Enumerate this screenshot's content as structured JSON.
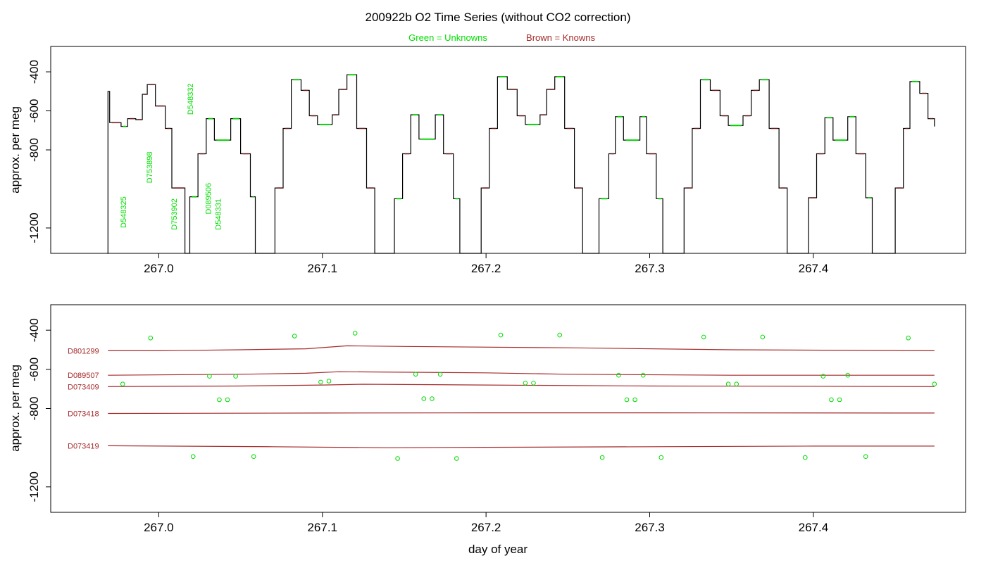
{
  "title": "200922b   O2 Time Series (without CO2 correction)",
  "legend": {
    "unknowns": "Green = Unknowns",
    "knowns": "Brown = Knowns",
    "unknowns_color": "#00dd00",
    "knowns_color": "#a52a2a"
  },
  "chart_data": [
    {
      "type": "line",
      "name": "time-series",
      "ylabel": "approx. per meg",
      "xlim": [
        266.934,
        267.493
      ],
      "ylim": [
        -1330,
        -270
      ],
      "y_reversed": true,
      "xticks": [
        "267.0",
        "267.1",
        "267.2",
        "267.3",
        "267.4"
      ],
      "xtick_values": [
        267.0,
        267.1,
        267.2,
        267.3,
        267.4
      ],
      "yticks": [
        "-400",
        "-600",
        "-800",
        "-1200"
      ],
      "ytick_values": [
        -400,
        -600,
        -800,
        -1200
      ],
      "trace_color": "#000000",
      "step_levels": [
        {
          "d": 266.9685,
          "v": -1330
        },
        {
          "d": 266.969,
          "v": -500
        },
        {
          "d": 266.97,
          "v": -660
        },
        {
          "d": 266.977,
          "v": -680
        },
        {
          "d": 266.981,
          "v": -640
        },
        {
          "d": 266.986,
          "v": -645
        },
        {
          "d": 266.99,
          "v": -515
        },
        {
          "d": 266.993,
          "v": -465
        },
        {
          "d": 266.998,
          "v": -575
        },
        {
          "d": 267.004,
          "v": -690
        },
        {
          "d": 267.008,
          "v": -995
        },
        {
          "d": 267.016,
          "v": -1330
        },
        {
          "d": 267.019,
          "v": -1040
        },
        {
          "d": 267.024,
          "v": -820
        },
        {
          "d": 267.029,
          "v": -640
        },
        {
          "d": 267.034,
          "v": -750
        },
        {
          "d": 267.044,
          "v": -640
        },
        {
          "d": 267.05,
          "v": -820
        },
        {
          "d": 267.056,
          "v": -1040
        },
        {
          "d": 267.059,
          "v": -1330
        },
        {
          "d": 267.068,
          "v": -1330
        },
        {
          "d": 267.071,
          "v": -995
        },
        {
          "d": 267.076,
          "v": -690
        },
        {
          "d": 267.081,
          "v": -440
        },
        {
          "d": 267.087,
          "v": -495
        },
        {
          "d": 267.092,
          "v": -625
        },
        {
          "d": 267.097,
          "v": -670
        },
        {
          "d": 267.106,
          "v": -620
        },
        {
          "d": 267.11,
          "v": -490
        },
        {
          "d": 267.115,
          "v": -415
        },
        {
          "d": 267.121,
          "v": -690
        },
        {
          "d": 267.127,
          "v": -995
        },
        {
          "d": 267.132,
          "v": -1330
        },
        {
          "d": 267.144,
          "v": -1050
        },
        {
          "d": 267.149,
          "v": -820
        },
        {
          "d": 267.154,
          "v": -620
        },
        {
          "d": 267.159,
          "v": -745
        },
        {
          "d": 267.169,
          "v": -620
        },
        {
          "d": 267.174,
          "v": -820
        },
        {
          "d": 267.18,
          "v": -1050
        },
        {
          "d": 267.184,
          "v": -1330
        },
        {
          "d": 267.194,
          "v": -1330
        },
        {
          "d": 267.197,
          "v": -995
        },
        {
          "d": 267.202,
          "v": -690
        },
        {
          "d": 267.207,
          "v": -425
        },
        {
          "d": 267.213,
          "v": -490
        },
        {
          "d": 267.219,
          "v": -625
        },
        {
          "d": 267.224,
          "v": -670
        },
        {
          "d": 267.233,
          "v": -620
        },
        {
          "d": 267.237,
          "v": -490
        },
        {
          "d": 267.242,
          "v": -425
        },
        {
          "d": 267.248,
          "v": -690
        },
        {
          "d": 267.254,
          "v": -995
        },
        {
          "d": 267.259,
          "v": -1330
        },
        {
          "d": 267.267,
          "v": -1330
        },
        {
          "d": 267.269,
          "v": -1050
        },
        {
          "d": 267.275,
          "v": -820
        },
        {
          "d": 267.279,
          "v": -630
        },
        {
          "d": 267.284,
          "v": -750
        },
        {
          "d": 267.294,
          "v": -630
        },
        {
          "d": 267.298,
          "v": -820
        },
        {
          "d": 267.304,
          "v": -1050
        },
        {
          "d": 267.308,
          "v": -1330
        },
        {
          "d": 267.319,
          "v": -1330
        },
        {
          "d": 267.321,
          "v": -995
        },
        {
          "d": 267.326,
          "v": -690
        },
        {
          "d": 267.331,
          "v": -440
        },
        {
          "d": 267.337,
          "v": -495
        },
        {
          "d": 267.343,
          "v": -625
        },
        {
          "d": 267.348,
          "v": -675
        },
        {
          "d": 267.357,
          "v": -625
        },
        {
          "d": 267.362,
          "v": -495
        },
        {
          "d": 267.367,
          "v": -440
        },
        {
          "d": 267.373,
          "v": -690
        },
        {
          "d": 267.379,
          "v": -995
        },
        {
          "d": 267.384,
          "v": -1330
        },
        {
          "d": 267.395,
          "v": -1330
        },
        {
          "d": 267.397,
          "v": -1045
        },
        {
          "d": 267.402,
          "v": -820
        },
        {
          "d": 267.407,
          "v": -635
        },
        {
          "d": 267.412,
          "v": -750
        },
        {
          "d": 267.421,
          "v": -630
        },
        {
          "d": 267.426,
          "v": -820
        },
        {
          "d": 267.432,
          "v": -1045
        },
        {
          "d": 267.436,
          "v": -1330
        },
        {
          "d": 267.448,
          "v": -1330
        },
        {
          "d": 267.45,
          "v": -995
        },
        {
          "d": 267.455,
          "v": -690
        },
        {
          "d": 267.459,
          "v": -450
        },
        {
          "d": 267.465,
          "v": -510
        },
        {
          "d": 267.47,
          "v": -640
        },
        {
          "d": 267.474,
          "v": -680
        }
      ],
      "sample_labels": [
        {
          "text": "D548325",
          "x": 266.98,
          "y": -1200
        },
        {
          "text": "D753898",
          "x": 266.996,
          "y": -970
        },
        {
          "text": "D753902",
          "x": 267.011,
          "y": -1210
        },
        {
          "text": "D548332",
          "x": 267.021,
          "y": -620
        },
        {
          "text": "D089506",
          "x": 267.032,
          "y": -1130
        },
        {
          "text": "D548331",
          "x": 267.038,
          "y": -1210
        }
      ]
    },
    {
      "type": "scatter",
      "name": "unknowns-vs-knowns",
      "ylabel": "approx. per meg",
      "xlabel": "day of year",
      "xlim": [
        266.934,
        267.493
      ],
      "ylim": [
        -1330,
        -270
      ],
      "y_reversed": true,
      "xticks": [
        "267.0",
        "267.1",
        "267.2",
        "267.3",
        "267.4"
      ],
      "xtick_values": [
        267.0,
        267.1,
        267.2,
        267.3,
        267.4
      ],
      "yticks": [
        "-400",
        "-600",
        "-800",
        "-1200"
      ],
      "ytick_values": [
        -400,
        -600,
        -800,
        -1200
      ],
      "unknowns": [
        {
          "x": 266.978,
          "y": -675
        },
        {
          "x": 266.995,
          "y": -440
        },
        {
          "x": 267.021,
          "y": -1045
        },
        {
          "x": 267.031,
          "y": -635
        },
        {
          "x": 267.037,
          "y": -755
        },
        {
          "x": 267.042,
          "y": -755
        },
        {
          "x": 267.047,
          "y": -635
        },
        {
          "x": 267.058,
          "y": -1045
        },
        {
          "x": 267.083,
          "y": -430
        },
        {
          "x": 267.099,
          "y": -665
        },
        {
          "x": 267.104,
          "y": -660
        },
        {
          "x": 267.12,
          "y": -415
        },
        {
          "x": 267.146,
          "y": -1055
        },
        {
          "x": 267.157,
          "y": -625
        },
        {
          "x": 267.162,
          "y": -750
        },
        {
          "x": 267.167,
          "y": -750
        },
        {
          "x": 267.172,
          "y": -625
        },
        {
          "x": 267.182,
          "y": -1055
        },
        {
          "x": 267.209,
          "y": -425
        },
        {
          "x": 267.224,
          "y": -670
        },
        {
          "x": 267.229,
          "y": -670
        },
        {
          "x": 267.245,
          "y": -425
        },
        {
          "x": 267.271,
          "y": -1050
        },
        {
          "x": 267.281,
          "y": -630
        },
        {
          "x": 267.286,
          "y": -755
        },
        {
          "x": 267.291,
          "y": -755
        },
        {
          "x": 267.296,
          "y": -630
        },
        {
          "x": 267.307,
          "y": -1050
        },
        {
          "x": 267.333,
          "y": -435
        },
        {
          "x": 267.348,
          "y": -675
        },
        {
          "x": 267.353,
          "y": -675
        },
        {
          "x": 267.369,
          "y": -435
        },
        {
          "x": 267.395,
          "y": -1050
        },
        {
          "x": 267.406,
          "y": -635
        },
        {
          "x": 267.411,
          "y": -755
        },
        {
          "x": 267.416,
          "y": -755
        },
        {
          "x": 267.421,
          "y": -630
        },
        {
          "x": 267.432,
          "y": -1045
        },
        {
          "x": 267.458,
          "y": -440
        },
        {
          "x": 267.474,
          "y": -675
        }
      ],
      "knowns": [
        {
          "name": "D801299",
          "points": [
            [
              266.969,
              -505
            ],
            [
              267.0,
              -505
            ],
            [
              267.05,
              -500
            ],
            [
              267.09,
              -495
            ],
            [
              267.115,
              -480
            ],
            [
              267.15,
              -483
            ],
            [
              267.25,
              -490
            ],
            [
              267.35,
              -500
            ],
            [
              267.474,
              -505
            ]
          ]
        },
        {
          "name": "D089507",
          "points": [
            [
              266.969,
              -630
            ],
            [
              267.05,
              -625
            ],
            [
              267.09,
              -620
            ],
            [
              267.11,
              -612
            ],
            [
              267.2,
              -618
            ],
            [
              267.25,
              -625
            ],
            [
              267.35,
              -630
            ],
            [
              267.474,
              -630
            ]
          ]
        },
        {
          "name": "D073409",
          "points": [
            [
              266.969,
              -688
            ],
            [
              267.05,
              -685
            ],
            [
              267.1,
              -680
            ],
            [
              267.125,
              -676
            ],
            [
              267.2,
              -680
            ],
            [
              267.3,
              -685
            ],
            [
              267.474,
              -688
            ]
          ]
        },
        {
          "name": "D073418",
          "points": [
            [
              266.969,
              -825
            ],
            [
              267.1,
              -823
            ],
            [
              267.2,
              -822
            ],
            [
              267.3,
              -822
            ],
            [
              267.474,
              -823
            ]
          ]
        },
        {
          "name": "D073419",
          "points": [
            [
              266.969,
              -990
            ],
            [
              267.07,
              -995
            ],
            [
              267.14,
              -1000
            ],
            [
              267.2,
              -998
            ],
            [
              267.3,
              -995
            ],
            [
              267.4,
              -992
            ],
            [
              267.474,
              -992
            ]
          ]
        }
      ]
    }
  ]
}
